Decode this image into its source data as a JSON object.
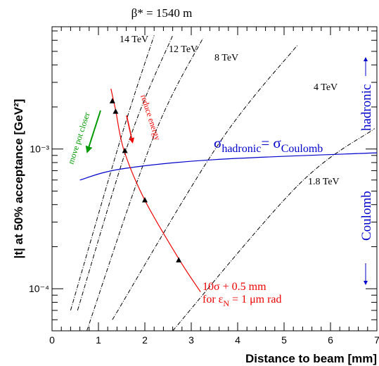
{
  "chart_data": {
    "type": "line",
    "title": "β* = 1540 m",
    "xlabel": "Distance to beam [mm]",
    "ylabel": "|t| at 50% acceptance [GeV²]",
    "xlim": [
      0,
      7
    ],
    "ylim": [
      5e-05,
      0.0075
    ],
    "yscale": "log",
    "x_ticks": [
      "0",
      "1",
      "2",
      "3",
      "4",
      "5",
      "6",
      "7"
    ],
    "y_ticks": [
      {
        "value": 0.0001,
        "label": "10⁻⁴"
      },
      {
        "value": 0.001,
        "label": "10⁻³"
      }
    ],
    "energy_series": [
      {
        "name": "14 TeV",
        "points": [
          [
            0.4,
            7e-05
          ],
          [
            1.5,
            0.00125
          ],
          [
            2.2,
            0.0065
          ]
        ]
      },
      {
        "name": "12 TeV",
        "points": [
          [
            0.55,
            7e-05
          ],
          [
            1.7,
            0.00125
          ],
          [
            2.6,
            0.0065
          ]
        ]
      },
      {
        "name": "8 TeV",
        "points": [
          [
            0.75,
            5e-05
          ],
          [
            2.2,
            0.00125
          ],
          [
            3.25,
            0.0062
          ]
        ]
      },
      {
        "name": "4 TeV",
        "points": [
          [
            1.3,
            6e-05
          ],
          [
            3.6,
            0.0011
          ],
          [
            5.3,
            0.0056
          ]
        ]
      },
      {
        "name": "1.8 TeV",
        "points": [
          [
            2.6,
            5e-05
          ],
          [
            5.3,
            0.00055
          ],
          [
            6.95,
            0.0014
          ]
        ]
      }
    ],
    "equality_curve": {
      "label_main": "σ",
      "label_sub1": "hadronic",
      "label_eq": "= σ",
      "label_sub2": "Coulomb",
      "points": [
        [
          0.6,
          0.0006
        ],
        [
          1.5,
          0.00072
        ],
        [
          3.5,
          0.00084
        ],
        [
          7.0,
          0.00094
        ]
      ]
    },
    "acceptance_curve": {
      "label_line1": "10σ + 0.5 mm",
      "label_line2_prefix": "for ε",
      "label_line2_sub": "N",
      "label_line2_suffix": " = 1 μm rad",
      "points": [
        [
          1.27,
          0.0027
        ],
        [
          1.37,
          0.0019
        ],
        [
          1.55,
          0.00098
        ],
        [
          2.0,
          0.00043
        ],
        [
          2.75,
          0.00016
        ],
        [
          3.2,
          9.5e-05
        ]
      ]
    },
    "markers": [
      [
        1.3,
        0.0022
      ],
      [
        1.37,
        0.00185
      ],
      [
        1.57,
        0.00097
      ],
      [
        2.0,
        0.00043
      ],
      [
        2.73,
        0.00016
      ]
    ],
    "annotations": {
      "move_pot": "move pot closer",
      "reduce_energy": "reduce energy",
      "hadronic": "hadronic",
      "coulomb": "Coulomb"
    },
    "colors": {
      "energy": "#000000",
      "equality": "#0000cc",
      "acceptance": "#ee0000",
      "move_pot": "#009900",
      "right_labels": "#0000cc"
    }
  }
}
